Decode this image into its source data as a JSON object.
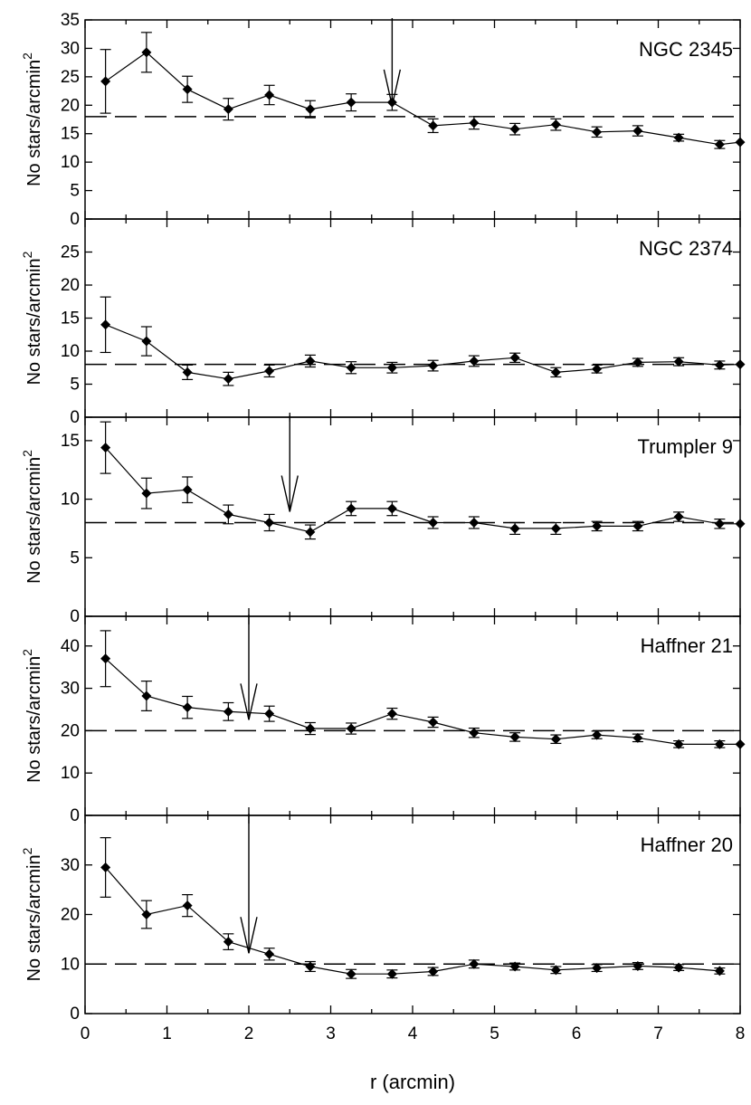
{
  "chart_data": {
    "type": "scatter",
    "figure": {
      "xlabel": "r (arcmin)",
      "ylabel_base": "No stars/arcmin",
      "ylabel_superscript": "2",
      "xlim": [
        0,
        8
      ],
      "xticks": [
        0,
        1,
        2,
        3,
        4,
        5,
        6,
        7,
        8
      ],
      "xtick_labels": [
        "0",
        "1",
        "2",
        "3",
        "4",
        "5",
        "6",
        "7",
        "8"
      ]
    },
    "panels": [
      {
        "label": "NGC 2345",
        "ylim": [
          0,
          35
        ],
        "yticks": [
          0,
          5,
          10,
          15,
          20,
          25,
          30,
          35
        ],
        "ytick_labels": [
          "0",
          "5",
          "10",
          "15",
          "20",
          "25",
          "30",
          "35"
        ],
        "background_level": 18,
        "arrow_x": 3.75,
        "x": [
          0.25,
          0.75,
          1.25,
          1.75,
          2.25,
          2.75,
          3.25,
          3.75,
          4.25,
          4.75,
          5.25,
          5.75,
          6.25,
          6.75,
          7.25,
          7.75,
          8.0
        ],
        "y": [
          24.2,
          29.3,
          22.8,
          19.3,
          21.8,
          19.3,
          20.5,
          20.5,
          16.4,
          16.9,
          15.8,
          16.6,
          15.3,
          15.5,
          14.3,
          13.1,
          13.5
        ],
        "yerr": [
          5.6,
          3.5,
          2.3,
          1.9,
          1.7,
          1.5,
          1.5,
          1.4,
          1.2,
          1.1,
          1.0,
          1.0,
          0.9,
          0.9,
          0.6,
          0.7,
          0
        ]
      },
      {
        "label": "NGC 2374",
        "ylim": [
          0,
          30
        ],
        "yticks": [
          0,
          5,
          10,
          15,
          20,
          25
        ],
        "ytick_labels": [
          "0",
          "5",
          "10",
          "15",
          "20",
          "25"
        ],
        "background_level": 8,
        "arrow_x": null,
        "x": [
          0.25,
          0.75,
          1.25,
          1.75,
          2.25,
          2.75,
          3.25,
          3.75,
          4.25,
          4.75,
          5.25,
          5.75,
          6.25,
          6.75,
          7.25,
          7.75,
          8.0
        ],
        "y": [
          14.0,
          11.5,
          6.8,
          5.8,
          7.0,
          8.5,
          7.5,
          7.5,
          7.8,
          8.5,
          9.0,
          6.8,
          7.3,
          8.3,
          8.4,
          7.9,
          8.0
        ],
        "yerr": [
          4.2,
          2.2,
          1.1,
          1.0,
          0.9,
          0.9,
          0.9,
          0.8,
          0.8,
          0.8,
          0.7,
          0.7,
          0.6,
          0.6,
          0.6,
          0.6,
          0
        ]
      },
      {
        "label": "Trumpler 9",
        "ylim": [
          0,
          17
        ],
        "yticks": [
          0,
          5,
          10,
          15
        ],
        "ytick_labels": [
          "0",
          "5",
          "10",
          "15"
        ],
        "background_level": 8,
        "arrow_x": 2.5,
        "x": [
          0.25,
          0.75,
          1.25,
          1.75,
          2.25,
          2.75,
          3.25,
          3.75,
          4.25,
          4.75,
          5.25,
          5.75,
          6.25,
          6.75,
          7.25,
          7.75,
          8.0
        ],
        "y": [
          14.4,
          10.5,
          10.8,
          8.7,
          8.0,
          7.2,
          9.2,
          9.2,
          8.0,
          8.0,
          7.5,
          7.5,
          7.7,
          7.7,
          8.5,
          7.9,
          7.9
        ],
        "yerr": [
          2.2,
          1.3,
          1.1,
          0.8,
          0.7,
          0.6,
          0.6,
          0.6,
          0.5,
          0.5,
          0.5,
          0.5,
          0.4,
          0.4,
          0.4,
          0.4,
          0
        ]
      },
      {
        "label": "Haffner 21",
        "ylim": [
          0,
          47
        ],
        "yticks": [
          0,
          10,
          20,
          30,
          40
        ],
        "ytick_labels": [
          "0",
          "10",
          "20",
          "30",
          "40"
        ],
        "background_level": 20,
        "arrow_x": 2.0,
        "x": [
          0.25,
          0.75,
          1.25,
          1.75,
          2.25,
          2.75,
          3.25,
          3.75,
          4.25,
          4.75,
          5.25,
          5.75,
          6.25,
          6.75,
          7.25,
          7.75,
          8.0
        ],
        "y": [
          37.0,
          28.2,
          25.5,
          24.5,
          24.0,
          20.5,
          20.5,
          24.0,
          22.0,
          19.5,
          18.5,
          18.0,
          19.0,
          18.3,
          16.8,
          16.8,
          16.8
        ],
        "yerr": [
          6.6,
          3.5,
          2.6,
          2.1,
          1.8,
          1.4,
          1.3,
          1.3,
          1.2,
          1.1,
          1.0,
          1.0,
          0.9,
          0.9,
          0.8,
          0.8,
          0
        ]
      },
      {
        "label": "Haffner 20",
        "ylim": [
          0,
          40
        ],
        "yticks": [
          0,
          10,
          20,
          30
        ],
        "ytick_labels": [
          "0",
          "10",
          "20",
          "30"
        ],
        "background_level": 10,
        "arrow_x": 2.0,
        "x": [
          0.25,
          0.75,
          1.25,
          1.75,
          2.25,
          2.75,
          3.25,
          3.75,
          4.25,
          4.75,
          5.25,
          5.75,
          6.25,
          6.75,
          7.25,
          7.75
        ],
        "y": [
          29.5,
          20.0,
          21.8,
          14.5,
          12.0,
          9.5,
          8.0,
          8.0,
          8.5,
          10.0,
          9.5,
          8.8,
          9.2,
          9.6,
          9.3,
          8.6
        ],
        "yerr": [
          6.0,
          2.8,
          2.2,
          1.6,
          1.2,
          1.0,
          0.9,
          0.8,
          0.8,
          0.8,
          0.7,
          0.7,
          0.7,
          0.7,
          0.6,
          0.6
        ]
      }
    ]
  }
}
